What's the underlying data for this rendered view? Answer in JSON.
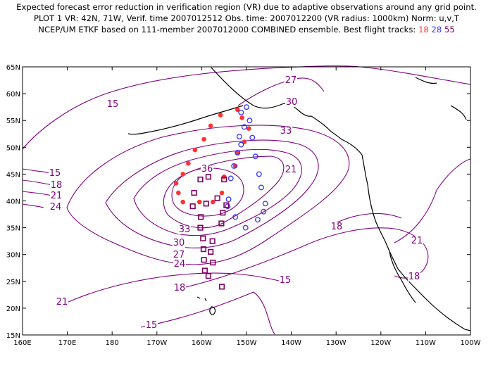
{
  "header": {
    "line1": "Expected forecast error reduction in verification region (VR) due to adaptive observations around any grid point.",
    "line2": "PLOT 1 VR: 42N, 71W, Verif. time 2007012512 Obs. time: 2007012200 (VR radius: 1000km) Norm: u,v,T",
    "line3_prefix": "NCEP/UM ETKF based on 111-member 2007012000 COMBINED ensemble.  Best flight tracks:",
    "track_18": "18",
    "track_28": "28",
    "track_55": "55"
  },
  "colors": {
    "contour": "#800080",
    "coast": "#000000",
    "track_18": "#ff3333",
    "track_28": "#3333ff",
    "track_55": "#800060"
  },
  "map": {
    "lat_labels": [
      "65N",
      "60N",
      "55N",
      "50N",
      "45N",
      "40N",
      "35N",
      "30N",
      "25N",
      "20N",
      "15N"
    ],
    "lon_labels": [
      "160E",
      "170E",
      "180",
      "170W",
      "160W",
      "150W",
      "140W",
      "130W",
      "120W",
      "110W",
      "100W"
    ],
    "contour_labels": [
      "15",
      "15",
      "15",
      "15",
      "18",
      "18",
      "18",
      "18",
      "21",
      "21",
      "21",
      "21",
      "24",
      "24",
      "27",
      "27",
      "30",
      "30",
      "33",
      "33",
      "36"
    ]
  },
  "tracks": {
    "track_18": [
      [
        -155.8,
        56
      ],
      [
        -158,
        54
      ],
      [
        -159.5,
        51.5
      ],
      [
        -161.5,
        49.5
      ],
      [
        -163,
        47
      ],
      [
        -164.2,
        45
      ],
      [
        -165.7,
        43.3
      ],
      [
        -165.2,
        41.5
      ],
      [
        -164.2,
        39.8
      ],
      [
        -160.5,
        39.8
      ],
      [
        -157.5,
        39.8
      ],
      [
        -155.5,
        41.5
      ],
      [
        -155,
        44.5
      ],
      [
        -152.5,
        46.5
      ],
      [
        -152,
        49
      ],
      [
        -150.5,
        51
      ],
      [
        -149.5,
        53.5
      ],
      [
        -151,
        55.5
      ],
      [
        -152,
        57
      ]
    ],
    "track_28": [
      [
        -150,
        57.5
      ],
      [
        -151.2,
        56.5
      ],
      [
        -149.3,
        55
      ],
      [
        -150.5,
        53.8
      ],
      [
        -151.6,
        52
      ],
      [
        -148.7,
        51.8
      ],
      [
        -151.2,
        50.5
      ],
      [
        -152,
        49
      ],
      [
        -148,
        48.3
      ],
      [
        -152.8,
        46.5
      ],
      [
        -147.2,
        45
      ],
      [
        -153.5,
        44.2
      ],
      [
        -146.7,
        42.5
      ],
      [
        -154,
        40.3
      ],
      [
        -145.8,
        39.5
      ],
      [
        -154.2,
        39
      ],
      [
        -146.2,
        38
      ],
      [
        -152.5,
        37
      ],
      [
        -147.5,
        36.5
      ],
      [
        -150.2,
        35
      ]
    ],
    "track_55": [
      [
        -158.5,
        44.5
      ],
      [
        -160.3,
        44
      ],
      [
        -155,
        44
      ],
      [
        -161.7,
        41.5
      ],
      [
        -156.5,
        40.5
      ],
      [
        -159,
        39.5
      ],
      [
        -162,
        39
      ],
      [
        -154.5,
        39.2
      ],
      [
        -155.3,
        37.8
      ],
      [
        -160.2,
        37
      ],
      [
        -155.6,
        35.8
      ],
      [
        -160.3,
        35
      ],
      [
        -159.7,
        33
      ],
      [
        -157.6,
        32.5
      ],
      [
        -159.6,
        31
      ],
      [
        -158,
        30.5
      ],
      [
        -159.5,
        29
      ],
      [
        -157.5,
        28.5
      ],
      [
        -159.3,
        27
      ],
      [
        -158.5,
        26
      ],
      [
        -155.5,
        24
      ]
    ]
  }
}
